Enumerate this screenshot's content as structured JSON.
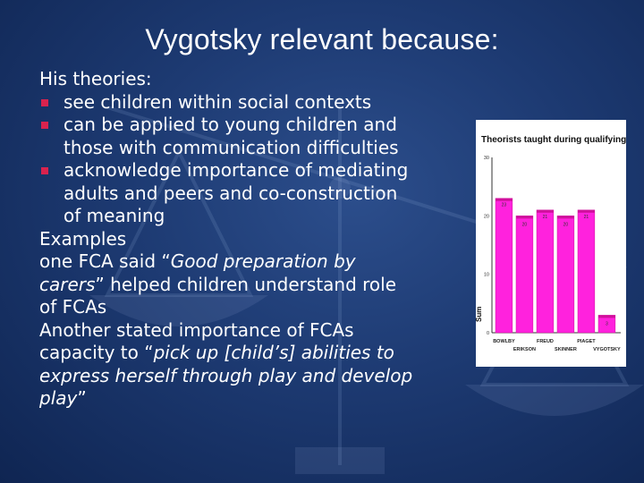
{
  "slide": {
    "title": "Vygotsky relevant because:",
    "heading_theories": "His theories:",
    "bullets": [
      {
        "text": "see children within social contexts"
      },
      {
        "text": "can be applied to young children and those with communication difficulties"
      },
      {
        "text": "acknowledge importance of mediating adults and peers and co-construction of meaning"
      }
    ],
    "heading_examples": "Examples",
    "example1": {
      "lead": "one FCA said “",
      "quote": "Good preparation by carers",
      "tail": "” helped  children understand role of FCAs"
    },
    "example2": {
      "lead": "Another stated importance of FCAs capacity to “",
      "quote": "pick up [child’s] abilities to express herself through play and develop play",
      "tail": "”"
    },
    "colors": {
      "background": "#1d3a72",
      "bullet": "#d9234e",
      "bar": "#ff22dd",
      "bar_top": "#d0109c"
    }
  },
  "chart_data": {
    "type": "bar",
    "title": "Theorists taught during qualifying training",
    "ylabel": "Sum",
    "categories": [
      "BOWLBY",
      "ERIKSON",
      "FREUD",
      "SKINNER",
      "PIAGET",
      "VYGOTSKY"
    ],
    "values": [
      23,
      20,
      21,
      20,
      21,
      3
    ],
    "ylim": [
      0,
      30
    ],
    "yticks": [
      "0",
      "10",
      "20",
      "30"
    ],
    "grid": false
  }
}
